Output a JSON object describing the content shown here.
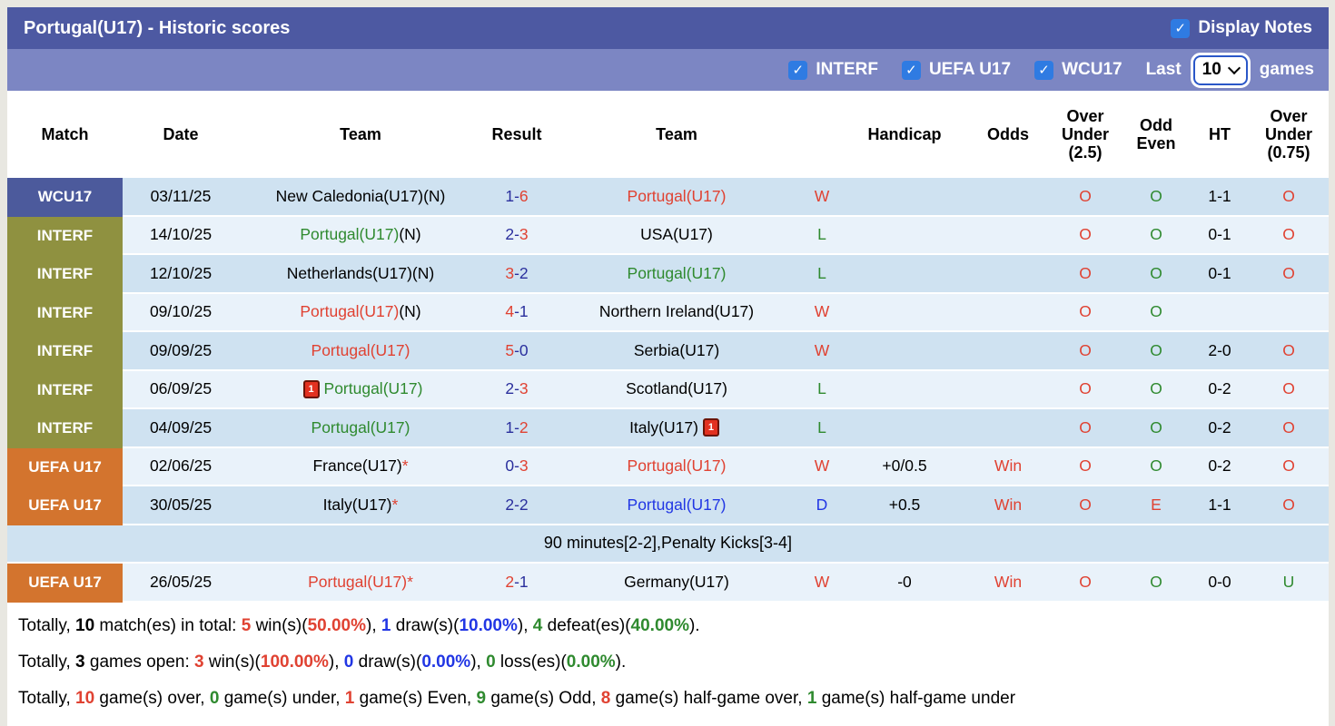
{
  "header": {
    "title": "Portugal(U17) - Historic scores",
    "display_notes_label": "Display Notes",
    "filters": [
      {
        "label": "INTERF",
        "checked": true
      },
      {
        "label": "UEFA U17",
        "checked": true
      },
      {
        "label": "WCU17",
        "checked": true
      }
    ],
    "last_label": "Last",
    "last_games_value": "10",
    "games_label": "games",
    "check_glyph": "✓"
  },
  "table": {
    "headers": [
      "Match",
      "Date",
      "Team",
      "Result",
      "Team",
      "Handicap",
      "Odds",
      "Over\nUnder\n(2.5)",
      "Odd\nEven",
      "HT",
      "Over\nUnder\n(0.75)"
    ],
    "rows": [
      {
        "type": "match",
        "shade": "m",
        "comp": "WCU17",
        "comp_class": "wcu",
        "date": "03/11/25",
        "home": {
          "segs": [
            {
              "t": "New Caledonia(U17)",
              "c": "k"
            },
            {
              "t": "(N)",
              "c": "k"
            }
          ],
          "card": null
        },
        "score": [
          {
            "t": "1",
            "c": "navy"
          },
          {
            "t": "-",
            "c": "navy"
          },
          {
            "t": "6",
            "c": "red"
          }
        ],
        "away": {
          "segs": [
            {
              "t": "Portugal(U17)",
              "c": "red"
            }
          ],
          "card": null
        },
        "wld": {
          "t": "W",
          "c": "red"
        },
        "handicap": "",
        "odds": {
          "t": "",
          "c": "red"
        },
        "ou25": {
          "t": "O",
          "c": "red"
        },
        "oddeven": {
          "t": "O",
          "c": "green"
        },
        "ht": "1-1",
        "ou075": {
          "t": "O",
          "c": "red"
        }
      },
      {
        "type": "match",
        "shade": "l",
        "comp": "INTERF",
        "comp_class": "interf",
        "date": "14/10/25",
        "home": {
          "segs": [
            {
              "t": "Portugal(U17)",
              "c": "green"
            },
            {
              "t": "(N)",
              "c": "k"
            }
          ],
          "card": null
        },
        "score": [
          {
            "t": "2",
            "c": "navy"
          },
          {
            "t": "-",
            "c": "navy"
          },
          {
            "t": "3",
            "c": "red"
          }
        ],
        "away": {
          "segs": [
            {
              "t": "USA(U17)",
              "c": "k"
            }
          ],
          "card": null
        },
        "wld": {
          "t": "L",
          "c": "green"
        },
        "handicap": "",
        "odds": {
          "t": "",
          "c": "red"
        },
        "ou25": {
          "t": "O",
          "c": "red"
        },
        "oddeven": {
          "t": "O",
          "c": "green"
        },
        "ht": "0-1",
        "ou075": {
          "t": "O",
          "c": "red"
        }
      },
      {
        "type": "match",
        "shade": "m",
        "comp": "INTERF",
        "comp_class": "interf",
        "date": "12/10/25",
        "home": {
          "segs": [
            {
              "t": "Netherlands(U17)",
              "c": "k"
            },
            {
              "t": "(N)",
              "c": "k"
            }
          ],
          "card": null
        },
        "score": [
          {
            "t": "3",
            "c": "red"
          },
          {
            "t": "-",
            "c": "navy"
          },
          {
            "t": "2",
            "c": "navy"
          }
        ],
        "away": {
          "segs": [
            {
              "t": "Portugal(U17)",
              "c": "green"
            }
          ],
          "card": null
        },
        "wld": {
          "t": "L",
          "c": "green"
        },
        "handicap": "",
        "odds": {
          "t": "",
          "c": "red"
        },
        "ou25": {
          "t": "O",
          "c": "red"
        },
        "oddeven": {
          "t": "O",
          "c": "green"
        },
        "ht": "0-1",
        "ou075": {
          "t": "O",
          "c": "red"
        }
      },
      {
        "type": "match",
        "shade": "l",
        "comp": "INTERF",
        "comp_class": "interf",
        "date": "09/10/25",
        "home": {
          "segs": [
            {
              "t": "Portugal(U17)",
              "c": "red"
            },
            {
              "t": "(N)",
              "c": "k"
            }
          ],
          "card": null
        },
        "score": [
          {
            "t": "4",
            "c": "red"
          },
          {
            "t": "-",
            "c": "navy"
          },
          {
            "t": "1",
            "c": "navy"
          }
        ],
        "away": {
          "segs": [
            {
              "t": "Northern Ireland(U17)",
              "c": "k"
            }
          ],
          "card": null
        },
        "wld": {
          "t": "W",
          "c": "red"
        },
        "handicap": "",
        "odds": {
          "t": "",
          "c": "red"
        },
        "ou25": {
          "t": "O",
          "c": "red"
        },
        "oddeven": {
          "t": "O",
          "c": "green"
        },
        "ht": "",
        "ou075": {
          "t": "",
          "c": "red"
        }
      },
      {
        "type": "match",
        "shade": "m",
        "comp": "INTERF",
        "comp_class": "interf",
        "date": "09/09/25",
        "home": {
          "segs": [
            {
              "t": "Portugal(U17)",
              "c": "red"
            }
          ],
          "card": null
        },
        "score": [
          {
            "t": "5",
            "c": "red"
          },
          {
            "t": "-",
            "c": "navy"
          },
          {
            "t": "0",
            "c": "navy"
          }
        ],
        "away": {
          "segs": [
            {
              "t": "Serbia(U17)",
              "c": "k"
            }
          ],
          "card": null
        },
        "wld": {
          "t": "W",
          "c": "red"
        },
        "handicap": "",
        "odds": {
          "t": "",
          "c": "red"
        },
        "ou25": {
          "t": "O",
          "c": "red"
        },
        "oddeven": {
          "t": "O",
          "c": "green"
        },
        "ht": "2-0",
        "ou075": {
          "t": "O",
          "c": "red"
        }
      },
      {
        "type": "match",
        "shade": "l",
        "comp": "INTERF",
        "comp_class": "interf",
        "date": "06/09/25",
        "home": {
          "segs": [
            {
              "t": "Portugal(U17)",
              "c": "green"
            }
          ],
          "card": "before"
        },
        "score": [
          {
            "t": "2",
            "c": "navy"
          },
          {
            "t": "-",
            "c": "navy"
          },
          {
            "t": "3",
            "c": "red"
          }
        ],
        "away": {
          "segs": [
            {
              "t": "Scotland(U17)",
              "c": "k"
            }
          ],
          "card": null
        },
        "wld": {
          "t": "L",
          "c": "green"
        },
        "handicap": "",
        "odds": {
          "t": "",
          "c": "red"
        },
        "ou25": {
          "t": "O",
          "c": "red"
        },
        "oddeven": {
          "t": "O",
          "c": "green"
        },
        "ht": "0-2",
        "ou075": {
          "t": "O",
          "c": "red"
        }
      },
      {
        "type": "match",
        "shade": "m",
        "comp": "INTERF",
        "comp_class": "interf",
        "date": "04/09/25",
        "home": {
          "segs": [
            {
              "t": "Portugal(U17)",
              "c": "green"
            }
          ],
          "card": null
        },
        "score": [
          {
            "t": "1",
            "c": "navy"
          },
          {
            "t": "-",
            "c": "navy"
          },
          {
            "t": "2",
            "c": "red"
          }
        ],
        "away": {
          "segs": [
            {
              "t": "Italy(U17)",
              "c": "k"
            }
          ],
          "card": "after"
        },
        "wld": {
          "t": "L",
          "c": "green"
        },
        "handicap": "",
        "odds": {
          "t": "",
          "c": "red"
        },
        "ou25": {
          "t": "O",
          "c": "red"
        },
        "oddeven": {
          "t": "O",
          "c": "green"
        },
        "ht": "0-2",
        "ou075": {
          "t": "O",
          "c": "red"
        }
      },
      {
        "type": "match",
        "shade": "l",
        "comp": "UEFA U17",
        "comp_class": "uefa",
        "date": "02/06/25",
        "home": {
          "segs": [
            {
              "t": "France(U17)",
              "c": "k"
            },
            {
              "t": "*",
              "c": "red"
            }
          ],
          "card": null
        },
        "score": [
          {
            "t": "0",
            "c": "navy"
          },
          {
            "t": "-",
            "c": "navy"
          },
          {
            "t": "3",
            "c": "red"
          }
        ],
        "away": {
          "segs": [
            {
              "t": "Portugal(U17)",
              "c": "red"
            }
          ],
          "card": null
        },
        "wld": {
          "t": "W",
          "c": "red"
        },
        "handicap": "+0/0.5",
        "odds": {
          "t": "Win",
          "c": "red"
        },
        "ou25": {
          "t": "O",
          "c": "red"
        },
        "oddeven": {
          "t": "O",
          "c": "green"
        },
        "ht": "0-2",
        "ou075": {
          "t": "O",
          "c": "red"
        }
      },
      {
        "type": "match",
        "shade": "m",
        "comp": "UEFA U17",
        "comp_class": "uefa",
        "date": "30/05/25",
        "home": {
          "segs": [
            {
              "t": "Italy(U17)",
              "c": "k"
            },
            {
              "t": "*",
              "c": "red"
            }
          ],
          "card": null
        },
        "score": [
          {
            "t": "2",
            "c": "navy"
          },
          {
            "t": "-",
            "c": "navy"
          },
          {
            "t": "2",
            "c": "navy"
          }
        ],
        "away": {
          "segs": [
            {
              "t": "Portugal(U17)",
              "c": "blue"
            }
          ],
          "card": null
        },
        "wld": {
          "t": "D",
          "c": "blue"
        },
        "handicap": "+0.5",
        "odds": {
          "t": "Win",
          "c": "red"
        },
        "ou25": {
          "t": "O",
          "c": "red"
        },
        "oddeven": {
          "t": "E",
          "c": "red"
        },
        "ht": "1-1",
        "ou075": {
          "t": "O",
          "c": "red"
        }
      },
      {
        "type": "note",
        "shade": "m",
        "text": "90 minutes[2-2],Penalty Kicks[3-4]"
      },
      {
        "type": "match",
        "shade": "l",
        "comp": "UEFA U17",
        "comp_class": "uefa",
        "date": "26/05/25",
        "home": {
          "segs": [
            {
              "t": "Portugal(U17)",
              "c": "red"
            },
            {
              "t": "*",
              "c": "red"
            }
          ],
          "card": null
        },
        "score": [
          {
            "t": "2",
            "c": "red"
          },
          {
            "t": "-",
            "c": "navy"
          },
          {
            "t": "1",
            "c": "navy"
          }
        ],
        "away": {
          "segs": [
            {
              "t": "Germany(U17)",
              "c": "k"
            }
          ],
          "card": null
        },
        "wld": {
          "t": "W",
          "c": "red"
        },
        "handicap": "-0",
        "odds": {
          "t": "Win",
          "c": "red"
        },
        "ou25": {
          "t": "O",
          "c": "red"
        },
        "oddeven": {
          "t": "O",
          "c": "green"
        },
        "ht": "0-0",
        "ou075": {
          "t": "U",
          "c": "green"
        }
      }
    ]
  },
  "summary": [
    [
      {
        "t": "Totally, ",
        "c": "k"
      },
      {
        "t": "10",
        "c": "k",
        "b": 1
      },
      {
        "t": " match(es) in total: ",
        "c": "k"
      },
      {
        "t": "5",
        "c": "red",
        "b": 1
      },
      {
        "t": " win(s)(",
        "c": "k"
      },
      {
        "t": "50.00%",
        "c": "red",
        "b": 1
      },
      {
        "t": "), ",
        "c": "k"
      },
      {
        "t": "1",
        "c": "blue",
        "b": 1
      },
      {
        "t": " draw(s)(",
        "c": "k"
      },
      {
        "t": "10.00%",
        "c": "blue",
        "b": 1
      },
      {
        "t": "), ",
        "c": "k"
      },
      {
        "t": "4",
        "c": "green",
        "b": 1
      },
      {
        "t": " defeat(es)(",
        "c": "k"
      },
      {
        "t": "40.00%",
        "c": "green",
        "b": 1
      },
      {
        "t": ").",
        "c": "k"
      }
    ],
    [
      {
        "t": "Totally, ",
        "c": "k"
      },
      {
        "t": "3",
        "c": "k",
        "b": 1
      },
      {
        "t": " games open: ",
        "c": "k"
      },
      {
        "t": "3",
        "c": "red",
        "b": 1
      },
      {
        "t": " win(s)(",
        "c": "k"
      },
      {
        "t": "100.00%",
        "c": "red",
        "b": 1
      },
      {
        "t": "), ",
        "c": "k"
      },
      {
        "t": "0",
        "c": "blue",
        "b": 1
      },
      {
        "t": " draw(s)(",
        "c": "k"
      },
      {
        "t": "0.00%",
        "c": "blue",
        "b": 1
      },
      {
        "t": "), ",
        "c": "k"
      },
      {
        "t": "0",
        "c": "green",
        "b": 1
      },
      {
        "t": " loss(es)(",
        "c": "k"
      },
      {
        "t": "0.00%",
        "c": "green",
        "b": 1
      },
      {
        "t": ").",
        "c": "k"
      }
    ],
    [
      {
        "t": "Totally, ",
        "c": "k"
      },
      {
        "t": "10",
        "c": "red",
        "b": 1
      },
      {
        "t": " game(s) over, ",
        "c": "k"
      },
      {
        "t": "0",
        "c": "green",
        "b": 1
      },
      {
        "t": " game(s) under, ",
        "c": "k"
      },
      {
        "t": "1",
        "c": "red",
        "b": 1
      },
      {
        "t": " game(s) Even, ",
        "c": "k"
      },
      {
        "t": "9",
        "c": "green",
        "b": 1
      },
      {
        "t": " game(s) Odd, ",
        "c": "k"
      },
      {
        "t": "8",
        "c": "red",
        "b": 1
      },
      {
        "t": " game(s) half-game over, ",
        "c": "k"
      },
      {
        "t": "1",
        "c": "green",
        "b": 1
      },
      {
        "t": " game(s) half-game under",
        "c": "k"
      }
    ]
  ],
  "colors": {
    "bar1": "#4d59a2",
    "bar2": "#7c86c3",
    "badge_wcu17": "#4c5a9c",
    "badge_interf": "#8f9140",
    "badge_uefa": "#d3742e",
    "row_medium": "#cfe2f1",
    "row_light": "#e9f2fa",
    "win_red": "#e04232",
    "loss_green": "#2f8a2f",
    "draw_blue": "#2136e4",
    "score_navy": "#2a2f9d",
    "checkbox_blue": "#2f7be2"
  }
}
